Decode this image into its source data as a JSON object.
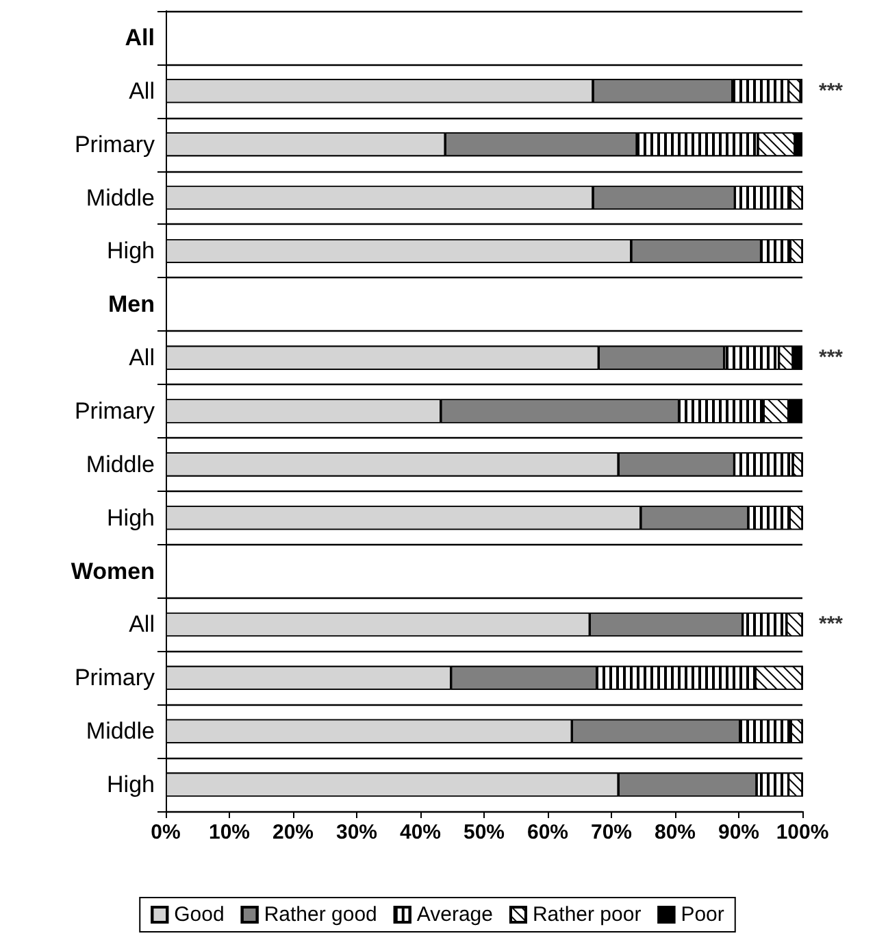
{
  "chart_data": {
    "type": "bar",
    "orientation": "horizontal",
    "stacked": true,
    "categories": [
      "All",
      "All",
      "Primary",
      "Middle",
      "High",
      "Men",
      "All",
      "Primary",
      "Middle",
      "High",
      "Women",
      "All",
      "Primary",
      "Middle",
      "High"
    ],
    "series": [
      {
        "name": "Good",
        "color": "#d4d4d4",
        "values": [
          null,
          67.1,
          43.9,
          67.1,
          73.1,
          null,
          68.0,
          43.2,
          71.1,
          74.6,
          null,
          66.6,
          44.8,
          63.8,
          71.1
        ]
      },
      {
        "name": "Rather good",
        "color": "#808080",
        "values": [
          null,
          21.9,
          30.1,
          22.3,
          20.4,
          null,
          19.7,
          37.4,
          18.2,
          16.9,
          null,
          24.0,
          22.9,
          26.4,
          21.7
        ]
      },
      {
        "name": "Average",
        "color": "#ffffff",
        "values": [
          null,
          8.8,
          19.0,
          8.7,
          4.6,
          null,
          8.6,
          13.3,
          9.2,
          6.5,
          null,
          6.9,
          24.9,
          8.0,
          5.0
        ]
      },
      {
        "name": "Rather poor",
        "color": "#ffffff",
        "values": [
          null,
          1.9,
          5.8,
          1.9,
          1.9,
          null,
          2.2,
          3.9,
          1.5,
          2.0,
          null,
          2.5,
          7.4,
          1.8,
          2.2
        ]
      },
      {
        "name": "Poor",
        "color": "#000000",
        "values": [
          null,
          0.3,
          1.2,
          0,
          0,
          null,
          1.5,
          2.2,
          0,
          0,
          null,
          0,
          0,
          0,
          0
        ]
      }
    ],
    "xlim": [
      0,
      100
    ],
    "xticks": [
      {
        "value": 0,
        "label": "0%"
      },
      {
        "value": 10,
        "label": "10%"
      },
      {
        "value": 20,
        "label": "20%"
      },
      {
        "value": 30,
        "label": "30%"
      },
      {
        "value": 40,
        "label": "40%"
      },
      {
        "value": 50,
        "label": "50%"
      },
      {
        "value": 60,
        "label": "60%"
      },
      {
        "value": 70,
        "label": "70%"
      },
      {
        "value": 80,
        "label": "80%"
      },
      {
        "value": 90,
        "label": "90%"
      },
      {
        "value": 100,
        "label": "100%"
      }
    ],
    "grid": "y",
    "legend": "bottom",
    "annotations": [
      "***",
      "***",
      "***"
    ]
  }
}
